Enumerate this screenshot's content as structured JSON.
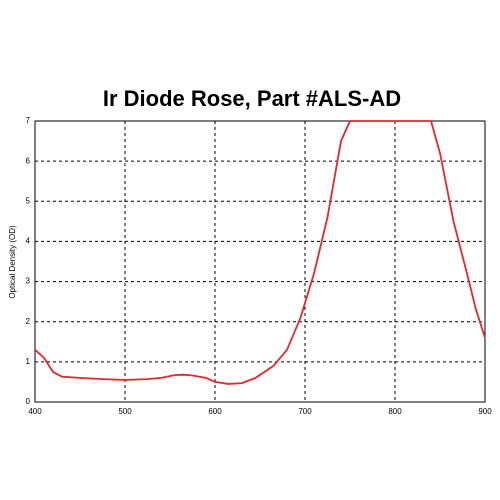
{
  "chart_data": {
    "type": "line",
    "title": "Ir Diode Rose, Part #ALS-AD",
    "y_label": "Optical Density (OD)",
    "x": [
      400,
      410,
      420,
      430,
      450,
      475,
      500,
      525,
      540,
      555,
      565,
      575,
      590,
      600,
      615,
      630,
      645,
      665,
      680,
      695,
      710,
      725,
      740,
      750,
      800,
      840,
      850,
      865,
      880,
      890,
      900
    ],
    "values": [
      1.3,
      1.1,
      0.75,
      0.63,
      0.6,
      0.57,
      0.55,
      0.57,
      0.6,
      0.67,
      0.68,
      0.66,
      0.6,
      0.5,
      0.45,
      0.47,
      0.6,
      0.9,
      1.3,
      2.1,
      3.2,
      4.6,
      6.5,
      7,
      7,
      7,
      6.2,
      4.5,
      3.2,
      2.3,
      1.6
    ],
    "color": "#e8262b",
    "xlim": [
      400,
      900
    ],
    "xticks": [
      400,
      500,
      600,
      700,
      800,
      900
    ],
    "ylim": [
      0,
      7
    ],
    "yticks": [
      0,
      1,
      2,
      3,
      4,
      5,
      6,
      7
    ],
    "grid": true
  }
}
